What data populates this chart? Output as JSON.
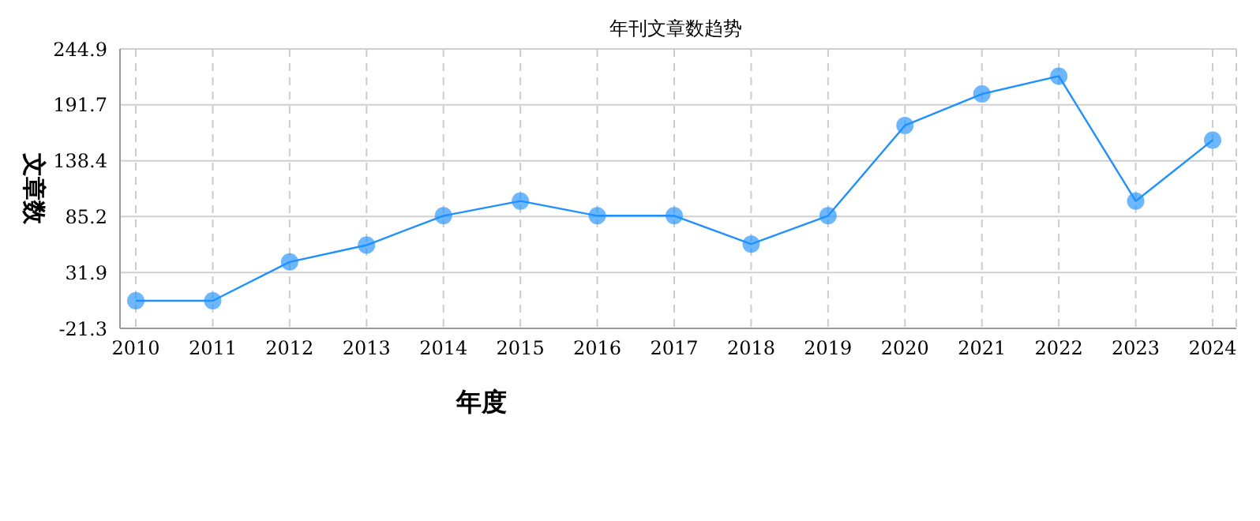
{
  "chart_data": {
    "type": "line",
    "title": "年刊文章数趋势",
    "xlabel": "年度",
    "ylabel": "文章数",
    "categories": [
      "2010",
      "2011",
      "2012",
      "2013",
      "2014",
      "2015",
      "2016",
      "2017",
      "2018",
      "2019",
      "2020",
      "2021",
      "2022",
      "2023",
      "2024"
    ],
    "series": [
      {
        "color": "#1e90ff",
        "values": [
          5,
          5,
          42,
          58,
          86,
          100,
          86,
          86,
          59,
          86,
          172,
          202,
          219,
          100,
          158
        ]
      }
    ],
    "ylim": [
      -21.3,
      244.9
    ],
    "yticks": [
      -21.3,
      31.9,
      85.2,
      138.4,
      191.7,
      244.9
    ],
    "grid": true,
    "marker": "circle",
    "line_style": "solid",
    "legend": false
  }
}
